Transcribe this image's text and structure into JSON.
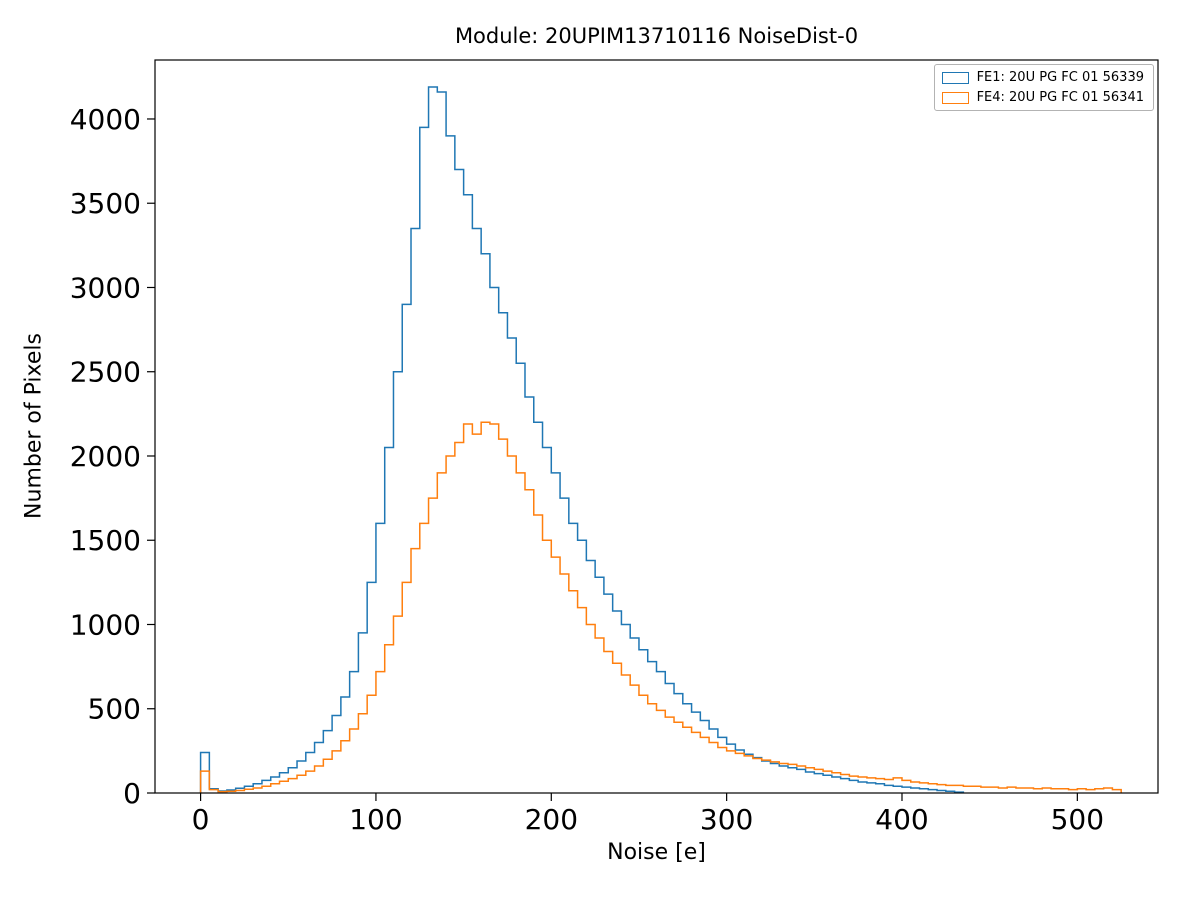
{
  "figure": {
    "title": "Module: 20UPIM13710116 NoiseDist-0",
    "xlabel": "Noise [e]",
    "ylabel": "Number of Pixels"
  },
  "chart_data": {
    "type": "line",
    "style": "step-histogram",
    "title": "Module: 20UPIM13710116 NoiseDist-0",
    "xlabel": "Noise [e]",
    "ylabel": "Number of Pixels",
    "grid": false,
    "legend_position": "upper right",
    "bin_start": 0,
    "bin_width": 5,
    "xlim": [
      -26,
      546
    ],
    "ylim": [
      0,
      4350
    ],
    "xticks": [
      0,
      100,
      200,
      300,
      400,
      500
    ],
    "yticks": [
      0,
      500,
      1000,
      1500,
      2000,
      2500,
      3000,
      3500,
      4000
    ],
    "series": [
      {
        "name": "FE1: 20U PG FC 01 56339",
        "color": "#1f77b4",
        "values": [
          240,
          25,
          12,
          18,
          28,
          40,
          55,
          75,
          95,
          120,
          150,
          190,
          240,
          300,
          370,
          460,
          570,
          720,
          950,
          1250,
          1600,
          2050,
          2500,
          2900,
          3350,
          3950,
          4190,
          4160,
          3900,
          3700,
          3550,
          3350,
          3200,
          3000,
          2850,
          2700,
          2550,
          2350,
          2200,
          2050,
          1900,
          1750,
          1600,
          1500,
          1380,
          1280,
          1180,
          1080,
          1000,
          920,
          850,
          780,
          720,
          650,
          590,
          530,
          480,
          430,
          380,
          330,
          290,
          255,
          230,
          210,
          190,
          175,
          160,
          150,
          140,
          125,
          115,
          105,
          95,
          85,
          75,
          65,
          60,
          55,
          45,
          40,
          35,
          30,
          25,
          20,
          15,
          10,
          5
        ]
      },
      {
        "name": "FE4: 20U PG FC 01 56341",
        "color": "#ff7f0e",
        "values": [
          130,
          20,
          8,
          10,
          15,
          22,
          30,
          40,
          55,
          70,
          85,
          105,
          130,
          160,
          200,
          250,
          310,
          380,
          470,
          580,
          720,
          880,
          1050,
          1250,
          1450,
          1600,
          1750,
          1900,
          2000,
          2080,
          2190,
          2130,
          2200,
          2190,
          2100,
          2000,
          1900,
          1800,
          1650,
          1500,
          1400,
          1300,
          1200,
          1100,
          1000,
          920,
          840,
          770,
          700,
          640,
          580,
          530,
          490,
          450,
          420,
          390,
          360,
          330,
          300,
          270,
          250,
          235,
          220,
          205,
          195,
          185,
          175,
          170,
          160,
          150,
          140,
          130,
          120,
          110,
          100,
          95,
          90,
          85,
          80,
          90,
          75,
          65,
          60,
          55,
          50,
          45,
          45,
          40,
          40,
          35,
          35,
          30,
          35,
          30,
          30,
          25,
          30,
          25,
          25,
          20,
          25,
          20,
          25,
          30,
          20
        ]
      }
    ]
  }
}
